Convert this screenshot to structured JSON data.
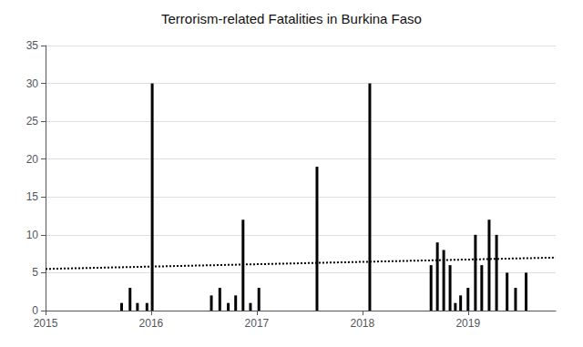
{
  "chart_data": {
    "type": "bar",
    "title": "Terrorism-related Fatalities in Burkina Faso",
    "xlim": [
      2015.0,
      2019.83
    ],
    "xticks": [
      2015,
      2016,
      2017,
      2018,
      2019
    ],
    "ylim": [
      0,
      35
    ],
    "yticks": [
      0,
      5,
      10,
      15,
      20,
      25,
      30,
      35
    ],
    "grid": true,
    "series": [
      {
        "type": "bar",
        "color": "#000000",
        "x": [
          2015.72,
          2015.8,
          2015.87,
          2015.96,
          2016.01,
          2016.57,
          2016.65,
          2016.73,
          2016.8,
          2016.87,
          2016.94,
          2017.02,
          2017.57,
          2018.07,
          2018.65,
          2018.71,
          2018.77,
          2018.83,
          2018.88,
          2018.93,
          2019.0,
          2019.07,
          2019.13,
          2019.2,
          2019.27,
          2019.37,
          2019.45,
          2019.55
        ],
        "values": [
          1,
          3,
          1,
          1,
          30,
          2,
          3,
          1,
          2,
          12,
          1,
          3,
          19,
          30,
          6,
          9,
          8,
          6,
          1,
          2,
          3,
          10,
          6,
          12,
          10,
          5,
          3,
          5
        ]
      },
      {
        "type": "line",
        "color": "#000000",
        "line_style": "dotted",
        "x": [
          2015.0,
          2019.83
        ],
        "values": [
          5.5,
          7.0
        ]
      }
    ]
  }
}
